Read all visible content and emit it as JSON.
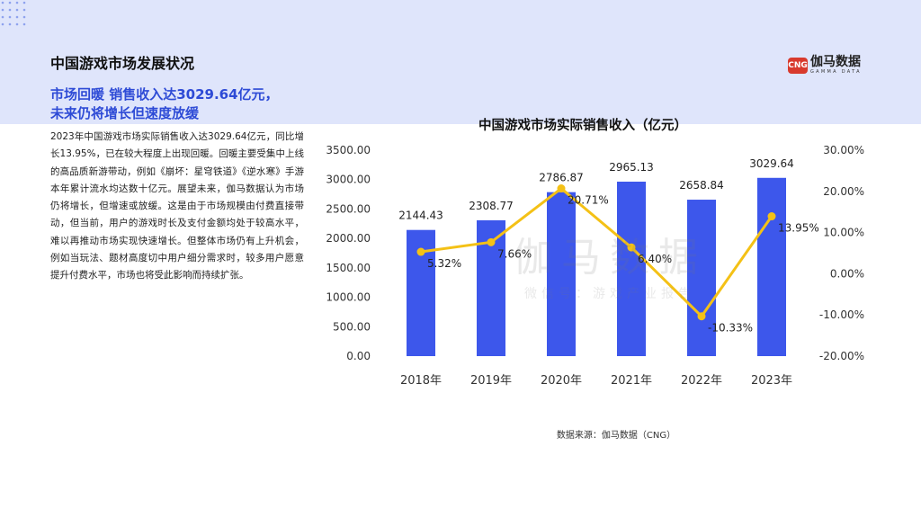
{
  "header": {
    "title": "中国游戏市场发展状况",
    "headline_line1": "市场回暖 销售收入达3029.64亿元，",
    "headline_line2": "未来仍将增长但速度放缓"
  },
  "logo": {
    "mark": "CNG",
    "name": "伽马数据",
    "subtitle": "GAMMA DATA",
    "color": "#d83a2d"
  },
  "body_text": "2023年中国游戏市场实际销售收入达3029.64亿元，同比增长13.95%，已在较大程度上出现回暖。回暖主要受集中上线的高品质新游带动，例如《崩坏：星穹铁道》《逆水寒》手游本年累计流水均达数十亿元。展望未来，伽马数据认为市场仍将增长，但增速或放缓。这是由于市场规模由付费直接带动，但当前，用户的游戏时长及支付金额均处于较高水平，难以再推动市场实现快速增长。但整体市场仍有上升机会，例如当玩法、题材高度切中用户细分需求时，较多用户愿意提升付费水平，市场也将受此影响而持续扩张。",
  "watermark": {
    "line1": "伽马数据",
    "line2": "微信号：游戏产业报告"
  },
  "source": "数据来源：伽马数据（CNG）",
  "chart_data": {
    "type": "bar",
    "title": "中国游戏市场实际销售收入（亿元）",
    "categories": [
      "2018年",
      "2019年",
      "2020年",
      "2021年",
      "2022年",
      "2023年"
    ],
    "series": [
      {
        "type": "bar",
        "axis": "left",
        "values": [
          2144.43,
          2308.77,
          2786.87,
          2965.13,
          2658.84,
          3029.64
        ],
        "labels": [
          "2144.43",
          "2308.77",
          "2786.87",
          "2965.13",
          "2658.84",
          "3029.64"
        ],
        "color": "#3d57eb"
      },
      {
        "type": "line",
        "axis": "right",
        "values": [
          5.32,
          7.66,
          20.71,
          6.4,
          -10.33,
          13.95
        ],
        "labels": [
          "5.32%",
          "7.66%",
          "20.71%",
          "6.40%",
          "-10.33%",
          "13.95%"
        ],
        "color": "#f4c116"
      }
    ],
    "ylim_left": [
      0,
      3500
    ],
    "yticks_left": [
      "3500.00",
      "3000.00",
      "2500.00",
      "2000.00",
      "1500.00",
      "1000.00",
      "500.00",
      "0.00"
    ],
    "ylim_right": [
      -20,
      30
    ],
    "yticks_right": [
      "30.00%",
      "20.00%",
      "10.00%",
      "0.00%",
      "-10.00%",
      "-20.00%"
    ],
    "grid": false,
    "legend": "none"
  }
}
